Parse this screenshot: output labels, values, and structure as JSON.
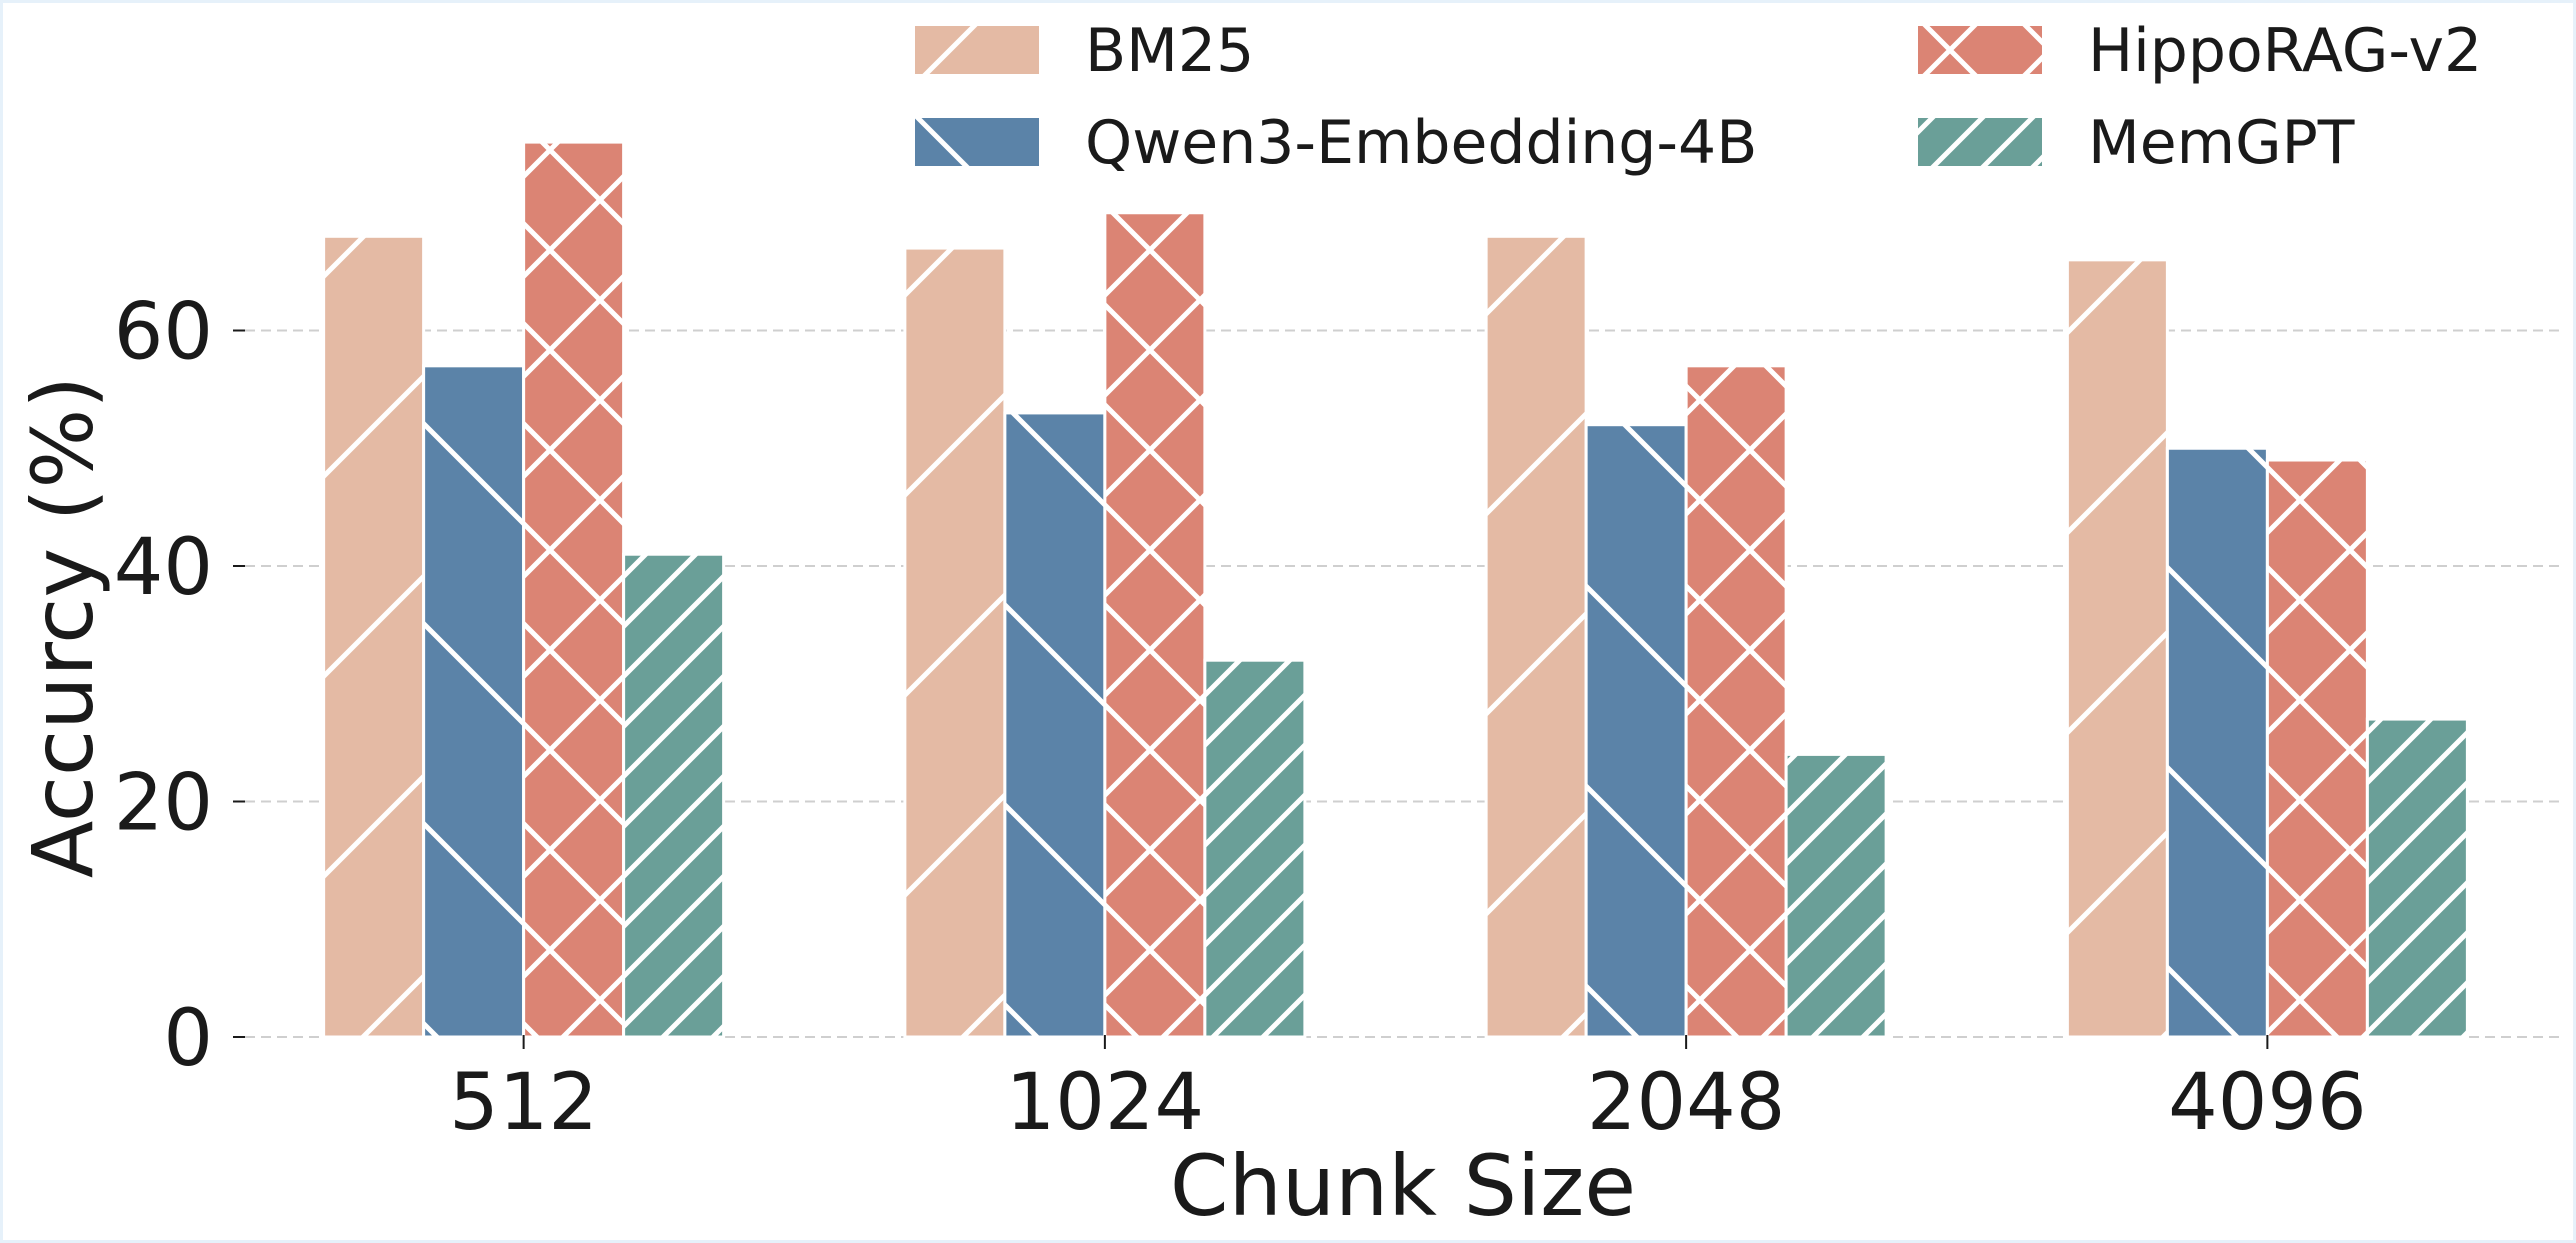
{
  "chart_data": {
    "type": "bar",
    "title": "",
    "xlabel": "Chunk Size",
    "ylabel": "Accurcy (%)",
    "categories": [
      "512",
      "1024",
      "2048",
      "4096"
    ],
    "ylim": [
      0,
      80
    ],
    "yticks": [
      0,
      20,
      40,
      60
    ],
    "grid": true,
    "legend_position": "top-right",
    "series": [
      {
        "name": "BM25",
        "values": [
          68,
          67,
          68,
          66
        ],
        "color": "#e4baa4",
        "hatch": "/"
      },
      {
        "name": "Qwen3-Embedding-4B",
        "values": [
          57,
          53,
          52,
          50
        ],
        "color": "#5b83a8",
        "hatch": "\\"
      },
      {
        "name": "HippoRAG-v2",
        "values": [
          76,
          70,
          57,
          49
        ],
        "color": "#db8474",
        "hatch": "x"
      },
      {
        "name": "MemGPT",
        "values": [
          41,
          32,
          24,
          27
        ],
        "color": "#6a9f98",
        "hatch": "//"
      }
    ]
  }
}
